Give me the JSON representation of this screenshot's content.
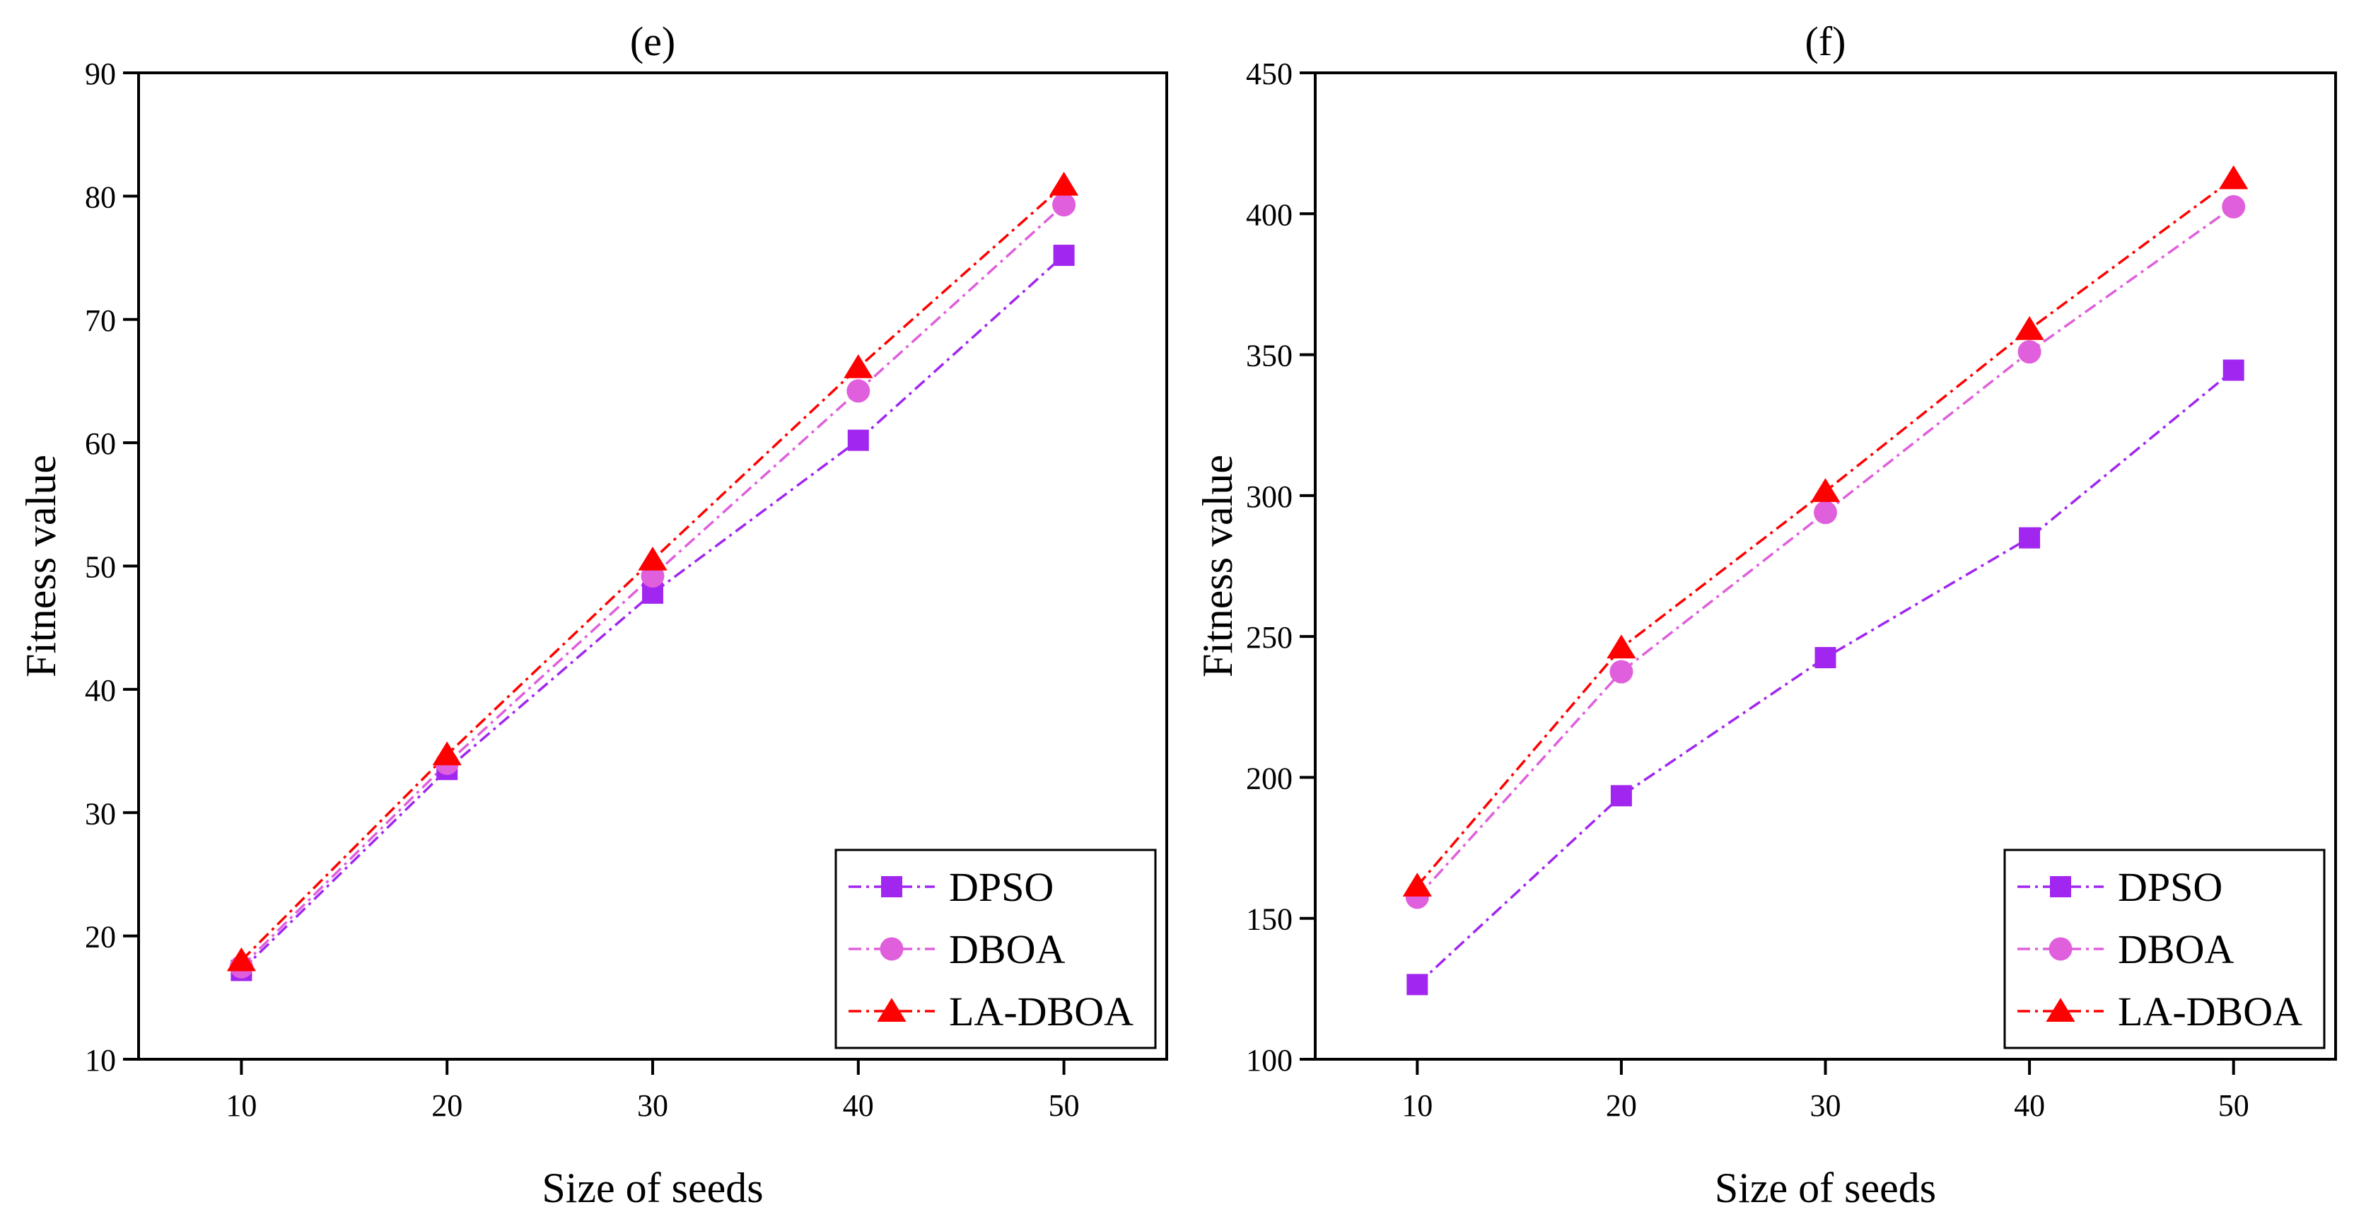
{
  "chart_data": [
    {
      "type": "line",
      "title": "(e)",
      "xlabel": "Size of seeds",
      "ylabel": "Fitness value",
      "x": [
        10,
        20,
        30,
        40,
        50
      ],
      "x_ticks": [
        "10",
        "20",
        "30",
        "40",
        "50"
      ],
      "ylim": [
        10,
        90
      ],
      "y_ticks": [
        "10",
        "20",
        "30",
        "40",
        "50",
        "60",
        "70",
        "80",
        "90"
      ],
      "legend_position": "bottom-right",
      "series": [
        {
          "name": "DPSO",
          "color": "#a126f0",
          "marker": "square",
          "values": [
            17.2,
            33.5,
            47.8,
            60.2,
            75.2
          ]
        },
        {
          "name": "DBOA",
          "color": "#e05fdc",
          "marker": "circle",
          "values": [
            17.5,
            34.0,
            49.2,
            64.2,
            79.3
          ]
        },
        {
          "name": "LA-DBOA",
          "color": "#ff0000",
          "marker": "triangle",
          "values": [
            18.0,
            34.7,
            50.5,
            66.1,
            80.9
          ]
        }
      ]
    },
    {
      "type": "line",
      "title": "(f)",
      "xlabel": "Size of seeds",
      "ylabel": "Fitness value",
      "x": [
        10,
        20,
        30,
        40,
        50
      ],
      "x_ticks": [
        "10",
        "20",
        "30",
        "40",
        "50"
      ],
      "ylim": [
        100,
        450
      ],
      "y_ticks": [
        "100",
        "150",
        "200",
        "250",
        "300",
        "350",
        "400",
        "450"
      ],
      "legend_position": "bottom-right",
      "series": [
        {
          "name": "DPSO",
          "color": "#a126f0",
          "marker": "square",
          "values": [
            126.5,
            193.5,
            242.5,
            285.0,
            344.5
          ]
        },
        {
          "name": "DBOA",
          "color": "#e05fdc",
          "marker": "circle",
          "values": [
            157.5,
            237.5,
            294.0,
            351.0,
            402.5
          ]
        },
        {
          "name": "LA-DBOA",
          "color": "#ff0000",
          "marker": "triangle",
          "values": [
            161.5,
            246.0,
            301.5,
            359.0,
            412.5
          ]
        }
      ]
    }
  ]
}
